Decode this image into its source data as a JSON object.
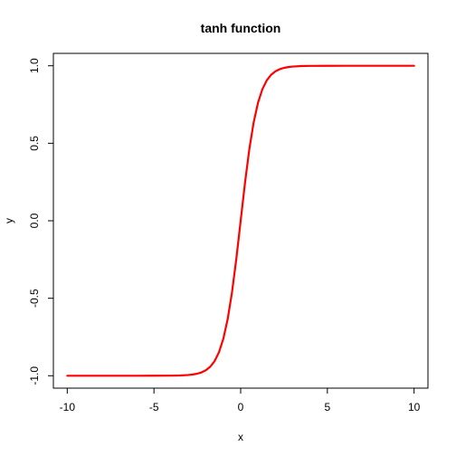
{
  "chart_data": {
    "type": "line",
    "title": "tanh function",
    "xlabel": "x",
    "ylabel": "y",
    "xlim": [
      -10.8,
      10.8
    ],
    "ylim": [
      -1.08,
      1.08
    ],
    "xticks": [
      -10,
      -5,
      0,
      5,
      10
    ],
    "xtick_labels": [
      "-10",
      "-5",
      "0",
      "5",
      "10"
    ],
    "yticks": [
      -1.0,
      -0.5,
      0.0,
      0.5,
      1.0
    ],
    "ytick_labels": [
      "-1.0",
      "-0.5",
      "0.0",
      "0.5",
      "1.0"
    ],
    "grid": false,
    "series": [
      {
        "color": "#ff0000",
        "x": [
          -10,
          -9,
          -8,
          -7,
          -6,
          -5,
          -4,
          -3.5,
          -3,
          -2.75,
          -2.5,
          -2.25,
          -2,
          -1.75,
          -1.5,
          -1.25,
          -1,
          -0.75,
          -0.5,
          -0.25,
          0,
          0.25,
          0.5,
          0.75,
          1,
          1.25,
          1.5,
          1.75,
          2,
          2.25,
          2.5,
          2.75,
          3,
          3.5,
          4,
          5,
          6,
          7,
          8,
          9,
          10
        ],
        "y": [
          -1.0,
          -1.0,
          -1.0,
          -1.0,
          -1.0,
          -0.9999,
          -0.9993,
          -0.9982,
          -0.9951,
          -0.9918,
          -0.9866,
          -0.978,
          -0.964,
          -0.9414,
          -0.9051,
          -0.8483,
          -0.7616,
          -0.6351,
          -0.4621,
          -0.2449,
          0.0,
          0.2449,
          0.4621,
          0.6351,
          0.7616,
          0.8483,
          0.9051,
          0.9414,
          0.964,
          0.978,
          0.9866,
          0.9918,
          0.9951,
          0.9982,
          0.9993,
          0.9999,
          1.0,
          1.0,
          1.0,
          1.0,
          1.0
        ]
      }
    ]
  }
}
